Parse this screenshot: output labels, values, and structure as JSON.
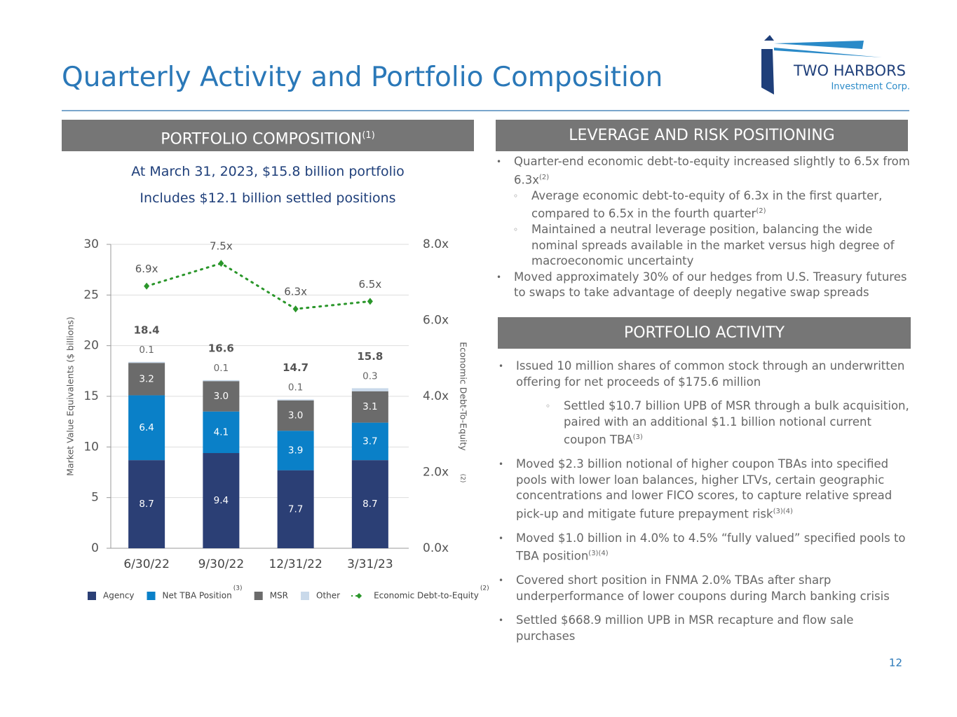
{
  "header": {
    "title": "Quarterly Activity and Portfolio Composition",
    "logo_name": "TWO HARBORS",
    "logo_sub": "Investment Corp."
  },
  "page_number": "12",
  "composition": {
    "heading": "PORTFOLIO COMPOSITION",
    "heading_note": "(1)",
    "lines": [
      "At March 31, 2023, $15.8 billion portfolio",
      "Includes $12.1 billion settled positions"
    ]
  },
  "leverage": {
    "heading": "LEVERAGE AND RISK POSITIONING",
    "bullets": [
      {
        "level": 1,
        "text": "Quarter-end economic debt-to-equity increased slightly to 6.5x from 6.3x",
        "note": "(2)"
      },
      {
        "level": 2,
        "text": "Average economic debt-to-equity of 6.3x in the first quarter, compared to 6.5x in the fourth quarter",
        "note": "(2)"
      },
      {
        "level": 2,
        "text": "Maintained a neutral leverage position, balancing the wide nominal spreads available in the market versus high degree of macroeconomic uncertainty"
      },
      {
        "level": 1,
        "text": "Moved approximately 30% of our hedges from U.S. Treasury futures to swaps to take advantage of deeply negative swap spreads"
      }
    ]
  },
  "activity": {
    "heading": "PORTFOLIO ACTIVITY",
    "bullets": [
      {
        "level": 1,
        "text": "Issued 10 million shares of common stock through an underwritten offering for net proceeds of $175.6 million"
      },
      {
        "level": 2,
        "text": "Settled $10.7 billion UPB of MSR through a bulk acquisition, paired with an additional $1.1 billion notional current coupon TBA",
        "note": "(3)"
      },
      {
        "level": 1,
        "text": "Moved $2.3 billion notional of higher coupon TBAs into specified pools with lower loan balances, higher LTVs, certain geographic concentrations and lower FICO scores, to capture relative spread pick-up and mitigate future prepayment risk",
        "note": "(3)(4)"
      },
      {
        "level": 1,
        "text": "Moved $1.0 billion in 4.0% to 4.5% “fully valued” specified pools to TBA position",
        "note": "(3)(4)"
      },
      {
        "level": 1,
        "text": "Covered short position in FNMA 2.0% TBAs after sharp underperformance of lower coupons during March banking crisis"
      },
      {
        "level": 1,
        "text": "Settled $668.9 million UPB in MSR recapture and flow sale purchases"
      }
    ]
  },
  "chart_data": {
    "type": "bar",
    "stacked": true,
    "categories": [
      "6/30/22",
      "9/30/22",
      "12/31/22",
      "3/31/23"
    ],
    "series": [
      {
        "name": "Agency",
        "color": "#2b3f75",
        "values": [
          8.7,
          9.4,
          7.7,
          8.7
        ]
      },
      {
        "name": "Net TBA Position",
        "name_note": "(3)",
        "color": "#0a80c8",
        "values": [
          6.4,
          4.1,
          3.9,
          3.7
        ]
      },
      {
        "name": "MSR",
        "color": "#6b6b6b",
        "values": [
          3.2,
          3.0,
          3.0,
          3.1
        ],
        "value_labels": [
          "3.2",
          "3.0",
          "3.0",
          "3.1"
        ]
      },
      {
        "name": "Other",
        "color": "#c9d9ea",
        "values": [
          0.1,
          0.1,
          0.1,
          0.3
        ]
      },
      {
        "name": "Economic Debt-to-Equity",
        "name_note": "(2)",
        "type": "line",
        "axis": "y2",
        "color": "#2a962a",
        "values": [
          6.9,
          7.5,
          6.3,
          6.5
        ],
        "value_labels": [
          "6.9x",
          "7.5x",
          "6.3x",
          "6.5x"
        ]
      }
    ],
    "totals": [
      18.4,
      16.6,
      14.7,
      15.8
    ],
    "ylabel": "Market Value Equivalents ($ billions)",
    "y2label": "Economic Debt-To-Equity",
    "y2label_note": "(2)",
    "ylim": [
      0,
      30
    ],
    "yticks": [
      0,
      5,
      10,
      15,
      20,
      25,
      30
    ],
    "y2lim": [
      0,
      8
    ],
    "y2ticks": [
      {
        "value": 0,
        "label": "0.0x"
      },
      {
        "value": 2,
        "label": "2.0x"
      },
      {
        "value": 4,
        "label": "4.0x"
      },
      {
        "value": 6,
        "label": "6.0x"
      },
      {
        "value": 8,
        "label": "8.0x"
      }
    ],
    "grid": true
  }
}
